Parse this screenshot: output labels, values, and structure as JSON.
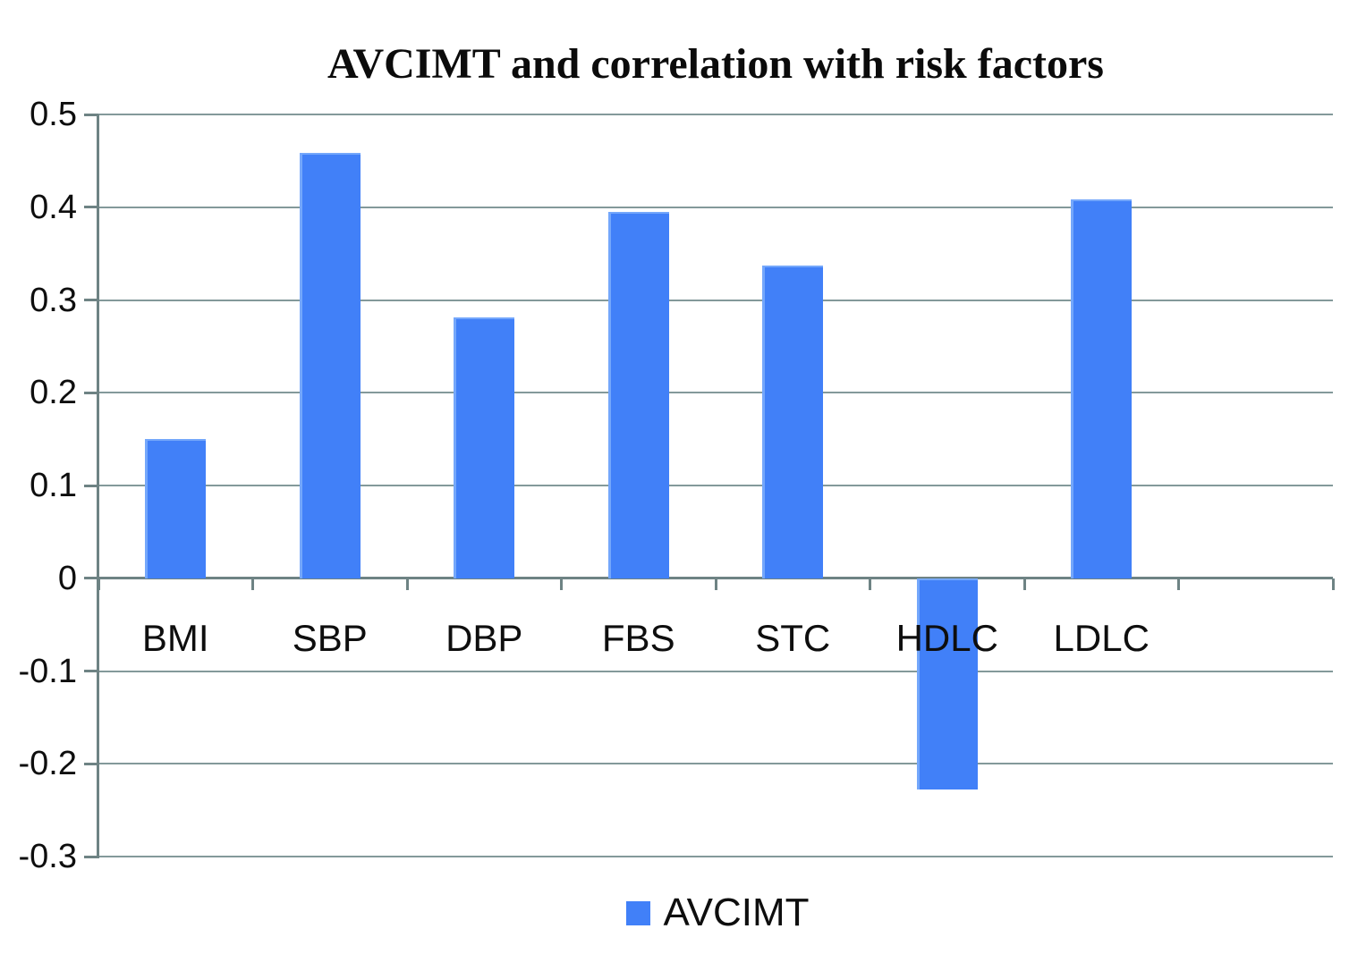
{
  "chart_data": {
    "type": "bar",
    "title": "AVCIMT and correlation with risk factors",
    "categories": [
      "BMI",
      "SBP",
      "DBP",
      "FBS",
      "STC",
      "HDLC",
      "LDLC"
    ],
    "series": [
      {
        "name": "AVCIMT",
        "values": [
          0.15,
          0.459,
          0.281,
          0.395,
          0.337,
          -0.228,
          0.408
        ]
      }
    ],
    "xlabel": "",
    "ylabel": "",
    "ylim": [
      -0.3,
      0.5
    ],
    "ytick_step": 0.1,
    "ytick_labels": [
      "0.5",
      "0.4",
      "0.3",
      "0.2",
      "0.1",
      "0",
      "-0.1",
      "-0.2",
      "-0.3"
    ],
    "grid": true,
    "legend_position": "bottom",
    "colors": {
      "bar_fill": "#4180f8",
      "bar_edge_light": "#74a7fb",
      "gridline": "#83999a",
      "axis": "#6e8384",
      "text": "#0e0e0e",
      "background": "#ffffff"
    }
  }
}
